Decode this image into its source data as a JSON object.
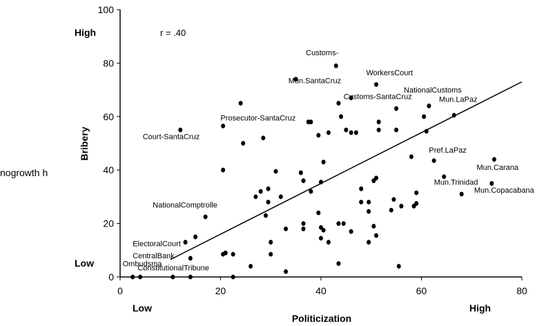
{
  "chart_data": {
    "type": "scatter",
    "xlabel": "Politicization",
    "ylabel": "Bribery",
    "xlim": [
      0,
      80
    ],
    "ylim": [
      0,
      100
    ],
    "xticks": [
      "0",
      "20",
      "40",
      "60",
      "80"
    ],
    "yticks": [
      "0",
      "20",
      "40",
      "60",
      "80",
      "100"
    ],
    "x_low_label": "Low",
    "x_high_label": "High",
    "y_low_label": "Low",
    "y_high_label": "High",
    "annotation": "r = .40",
    "clipped_left_text": "nogrowth h",
    "trendline": {
      "x": [
        10,
        80
      ],
      "y": [
        6.5,
        73
      ]
    },
    "points": [
      {
        "x": 43,
        "y": 79
      },
      {
        "x": 35,
        "y": 74
      },
      {
        "x": 51,
        "y": 72
      },
      {
        "x": 43.5,
        "y": 65
      },
      {
        "x": 46,
        "y": 67
      },
      {
        "x": 61.5,
        "y": 64
      },
      {
        "x": 55,
        "y": 63
      },
      {
        "x": 24,
        "y": 65
      },
      {
        "x": 44,
        "y": 60
      },
      {
        "x": 66.5,
        "y": 60.5
      },
      {
        "x": 60.5,
        "y": 60
      },
      {
        "x": 51.5,
        "y": 58
      },
      {
        "x": 37.5,
        "y": 58
      },
      {
        "x": 38,
        "y": 58
      },
      {
        "x": 20.5,
        "y": 56.5
      },
      {
        "x": 12,
        "y": 55
      },
      {
        "x": 45,
        "y": 55
      },
      {
        "x": 46,
        "y": 54
      },
      {
        "x": 47,
        "y": 54
      },
      {
        "x": 51.5,
        "y": 55
      },
      {
        "x": 55,
        "y": 55
      },
      {
        "x": 61,
        "y": 54.5
      },
      {
        "x": 41.5,
        "y": 54
      },
      {
        "x": 39.5,
        "y": 53
      },
      {
        "x": 28.5,
        "y": 52
      },
      {
        "x": 24.5,
        "y": 50
      },
      {
        "x": 74.5,
        "y": 44
      },
      {
        "x": 58,
        "y": 45
      },
      {
        "x": 62.5,
        "y": 43.5
      },
      {
        "x": 40.5,
        "y": 43
      },
      {
        "x": 20.5,
        "y": 40
      },
      {
        "x": 31,
        "y": 39.5
      },
      {
        "x": 36,
        "y": 39
      },
      {
        "x": 64.5,
        "y": 37.5
      },
      {
        "x": 51,
        "y": 37
      },
      {
        "x": 50.5,
        "y": 36
      },
      {
        "x": 36.5,
        "y": 36
      },
      {
        "x": 40,
        "y": 35.5
      },
      {
        "x": 74,
        "y": 35
      },
      {
        "x": 29.5,
        "y": 33
      },
      {
        "x": 48,
        "y": 33
      },
      {
        "x": 28,
        "y": 32
      },
      {
        "x": 38,
        "y": 32
      },
      {
        "x": 59,
        "y": 31.5
      },
      {
        "x": 68,
        "y": 31
      },
      {
        "x": 32,
        "y": 30
      },
      {
        "x": 27,
        "y": 30
      },
      {
        "x": 29.5,
        "y": 28
      },
      {
        "x": 54.5,
        "y": 29
      },
      {
        "x": 48,
        "y": 28
      },
      {
        "x": 49.5,
        "y": 28
      },
      {
        "x": 59,
        "y": 27.5
      },
      {
        "x": 58.5,
        "y": 26.5
      },
      {
        "x": 56,
        "y": 26.5
      },
      {
        "x": 54,
        "y": 25
      },
      {
        "x": 49.5,
        "y": 24.5
      },
      {
        "x": 39.5,
        "y": 24
      },
      {
        "x": 29,
        "y": 23
      },
      {
        "x": 17,
        "y": 22.5
      },
      {
        "x": 36.5,
        "y": 20
      },
      {
        "x": 43.5,
        "y": 20
      },
      {
        "x": 44.5,
        "y": 20
      },
      {
        "x": 50.5,
        "y": 19
      },
      {
        "x": 40,
        "y": 18.5
      },
      {
        "x": 33,
        "y": 18
      },
      {
        "x": 36.5,
        "y": 18
      },
      {
        "x": 40.5,
        "y": 17.5
      },
      {
        "x": 46,
        "y": 17
      },
      {
        "x": 51,
        "y": 15.5
      },
      {
        "x": 15,
        "y": 15
      },
      {
        "x": 40,
        "y": 14.5
      },
      {
        "x": 41.5,
        "y": 13
      },
      {
        "x": 49.5,
        "y": 13
      },
      {
        "x": 13,
        "y": 13
      },
      {
        "x": 30,
        "y": 13
      },
      {
        "x": 21,
        "y": 9
      },
      {
        "x": 20.5,
        "y": 8.5
      },
      {
        "x": 22.5,
        "y": 8.5
      },
      {
        "x": 30,
        "y": 8.5
      },
      {
        "x": 14,
        "y": 7
      },
      {
        "x": 43.5,
        "y": 5
      },
      {
        "x": 55.5,
        "y": 4
      },
      {
        "x": 26,
        "y": 4
      },
      {
        "x": 33,
        "y": 2
      },
      {
        "x": 2.5,
        "y": 0
      },
      {
        "x": 4,
        "y": 0
      },
      {
        "x": 10.5,
        "y": 0
      },
      {
        "x": 14,
        "y": 0
      },
      {
        "x": 22.5,
        "y": 0
      }
    ],
    "labels": [
      {
        "text": "Customs-",
        "x": 37,
        "y": 83
      },
      {
        "text": "Mun.SantaCruz",
        "x": 33.5,
        "y": 72.5
      },
      {
        "text": "WorkersCourt",
        "x": 49,
        "y": 75.5
      },
      {
        "text": "Customs-SantaCruz",
        "x": 44.5,
        "y": 66.5
      },
      {
        "text": "NationalCustoms",
        "x": 56.5,
        "y": 69
      },
      {
        "text": "Mun.LaPaz",
        "x": 63.5,
        "y": 65.5
      },
      {
        "text": "Prosecutor-SantaCruz",
        "x": 20,
        "y": 58.5
      },
      {
        "text": "Court-SantaCruz",
        "x": 4.5,
        "y": 51.5
      },
      {
        "text": "Pref.LaPaz",
        "x": 61.5,
        "y": 46.5
      },
      {
        "text": "Mun.Carana",
        "x": 71,
        "y": 40
      },
      {
        "text": "Mun.Trinidad",
        "x": 62.5,
        "y": 34.5
      },
      {
        "text": "Mun.Copacabana",
        "x": 70.5,
        "y": 31.5
      },
      {
        "text": "NationalComptrolle",
        "x": 6.5,
        "y": 26
      },
      {
        "text": "ElectoralCourt",
        "x": 2.5,
        "y": 11.5
      },
      {
        "text": "CentralBank",
        "x": 2.5,
        "y": 7
      },
      {
        "text": "ConstitutionalTribune",
        "x": 3.5,
        "y": 2.5
      },
      {
        "text": "Ombudsma",
        "x": 0.5,
        "y": 4
      }
    ]
  }
}
